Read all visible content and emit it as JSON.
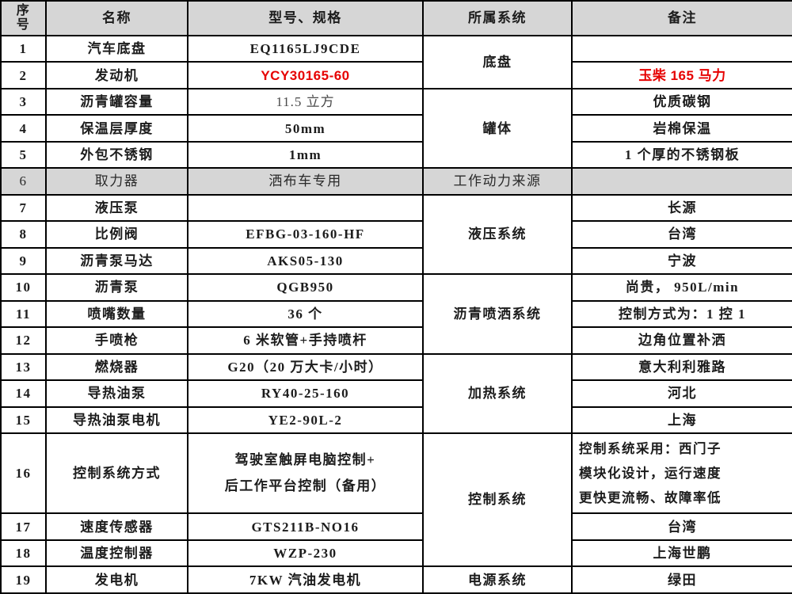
{
  "colors": {
    "header_bg": "#d6d6d6",
    "row_gray_bg": "#d6d6d6",
    "highlight_red": "#e60000",
    "border": "#000000",
    "text": "#1c1c1c",
    "muted_text": "#4a4a4a"
  },
  "table": {
    "columns": [
      {
        "key": "no",
        "label": "序\n号"
      },
      {
        "key": "name",
        "label": "名称"
      },
      {
        "key": "model",
        "label": "型号、规格"
      },
      {
        "key": "system",
        "label": "所属系统"
      },
      {
        "key": "remark",
        "label": "备注"
      }
    ],
    "rows": [
      {
        "no": "1",
        "name": "汽车底盘",
        "model": "EQ1165LJ9CDE",
        "system": {
          "text": "底盘",
          "rowspan": 2
        },
        "remark": ""
      },
      {
        "no": "2",
        "name": "发动机",
        "model": "YCY30165-60",
        "model_style": "red",
        "remark": "玉柴 165 马力",
        "remark_style": "red"
      },
      {
        "no": "3",
        "name": "沥青罐容量",
        "model": "11.5 立方",
        "model_style": "light",
        "system": {
          "text": "罐体",
          "rowspan": 3
        },
        "remark": "优质碳钢"
      },
      {
        "no": "4",
        "name": "保温层厚度",
        "model": "50mm",
        "remark": "岩棉保温"
      },
      {
        "no": "5",
        "name": "外包不锈钢",
        "model": "1mm",
        "remark": "1 个厚的不锈钢板"
      },
      {
        "no": "6",
        "name": "取力器",
        "model": "洒布车专用",
        "system": {
          "text": "工作动力来源",
          "rowspan": 1
        },
        "remark": "",
        "gray": true
      },
      {
        "no": "7",
        "name": "液压泵",
        "model": "",
        "system": {
          "text": "液压系统",
          "rowspan": 3
        },
        "remark": "长源"
      },
      {
        "no": "8",
        "name": "比例阀",
        "model": "EFBG-03-160-HF",
        "remark": "台湾"
      },
      {
        "no": "9",
        "name": "沥青泵马达",
        "model": "AKS05-130",
        "remark": "宁波"
      },
      {
        "no": "10",
        "name": "沥青泵",
        "model": "QGB950",
        "system": {
          "text": "沥青喷洒系统",
          "rowspan": 3
        },
        "remark": "尚贵，  950L/min"
      },
      {
        "no": "11",
        "name": "喷嘴数量",
        "model": "36 个",
        "remark": "控制方式为：1 控 1"
      },
      {
        "no": "12",
        "name": "手喷枪",
        "model": "6 米软管+手持喷杆",
        "remark": "边角位置补洒"
      },
      {
        "no": "13",
        "name": "燃烧器",
        "model": "G20（20 万大卡/小时）",
        "system": {
          "text": "加热系统",
          "rowspan": 3
        },
        "remark": "意大利利雅路"
      },
      {
        "no": "14",
        "name": "导热油泵",
        "model": "RY40-25-160",
        "remark": "河北"
      },
      {
        "no": "15",
        "name": "导热油泵电机",
        "model": "YE2-90L-2",
        "remark": "上海"
      },
      {
        "no": "16",
        "name": "控制系统方式",
        "model": "驾驶室触屏电脑控制+\n后工作平台控制（备用）",
        "system": {
          "text": "控制系统",
          "rowspan": 3
        },
        "remark": "控制系统采用：西门子\n模块化设计，运行速度\n更快更流畅、故障率低",
        "remark_style": "left",
        "tall": true
      },
      {
        "no": "17",
        "name": "速度传感器",
        "model": "GTS211B-NO16",
        "remark": "台湾"
      },
      {
        "no": "18",
        "name": "温度控制器",
        "model": "WZP-230",
        "remark": "上海世鹏"
      },
      {
        "no": "19",
        "name": "发电机",
        "model": "7KW 汽油发电机",
        "system": {
          "text": "电源系统",
          "rowspan": 1
        },
        "remark": "绿田"
      }
    ]
  }
}
